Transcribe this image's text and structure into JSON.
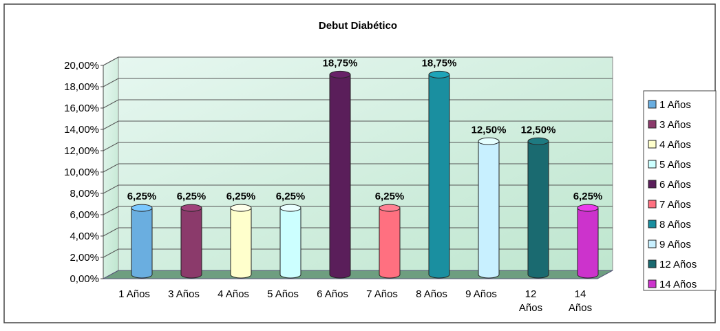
{
  "chart_data": {
    "type": "bar",
    "title": "Debut Diabético",
    "categories": [
      "1 Años",
      "3 Años",
      "4 Años",
      "5 Años",
      "6 Años",
      "7 Años",
      "8 Años",
      "9 Años",
      "12 Años",
      "14 Años"
    ],
    "values": [
      6.25,
      6.25,
      6.25,
      6.25,
      18.75,
      6.25,
      18.75,
      12.5,
      12.5,
      6.25
    ],
    "value_labels": [
      "6,25%",
      "6,25%",
      "6,25%",
      "6,25%",
      "18,75%",
      "6,25%",
      "18,75%",
      "12,50%",
      "12,50%",
      "6,25%"
    ],
    "colors": [
      "#6aaee0",
      "#8b3a6b",
      "#ffffcc",
      "#ccffff",
      "#5a1e5a",
      "#ff7080",
      "#1a8fa0",
      "#c8f0ff",
      "#1a6a70",
      "#cc33cc"
    ],
    "ylim": [
      0,
      20
    ],
    "yticks": [
      {
        "value": 0,
        "label": "0,00%"
      },
      {
        "value": 2,
        "label": "2,00%"
      },
      {
        "value": 4,
        "label": "4,00%"
      },
      {
        "value": 6,
        "label": "6,00%"
      },
      {
        "value": 8,
        "label": "8,00%"
      },
      {
        "value": 10,
        "label": "10,00%"
      },
      {
        "value": 12,
        "label": "12,00%"
      },
      {
        "value": 14,
        "label": "14,00%"
      },
      {
        "value": 16,
        "label": "16,00%"
      },
      {
        "value": 18,
        "label": "18,00%"
      },
      {
        "value": 20,
        "label": "20,00%"
      }
    ],
    "grid": true,
    "legend": "right"
  }
}
